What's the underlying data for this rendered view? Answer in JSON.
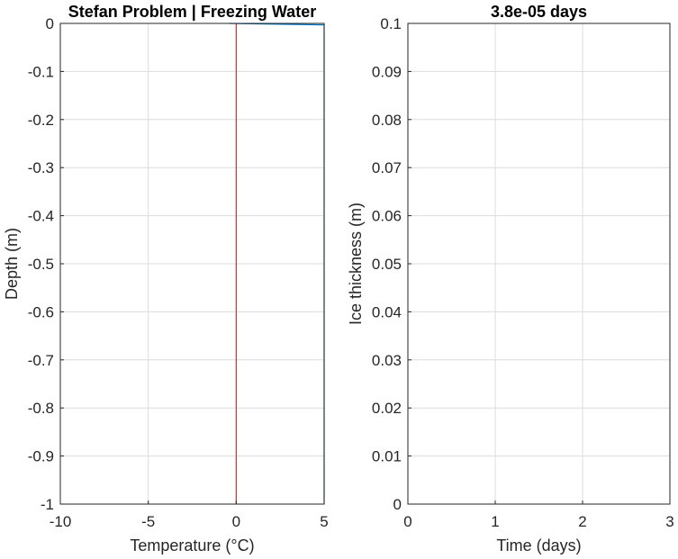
{
  "colors": {
    "grid": "#dcdcdc",
    "axes": "#262626",
    "temperature_line": "#0072bd",
    "freezing_line": "#c0392b"
  },
  "chart_data": [
    {
      "type": "line",
      "title": "Stefan Problem | Freezing Water",
      "xlabel": "Temperature (°C)",
      "ylabel": "Depth (m)",
      "xlim": [
        -10,
        5
      ],
      "ylim": [
        -1,
        0
      ],
      "xticks": [
        -10,
        -5,
        0,
        5
      ],
      "yticks": [
        -1,
        -0.9,
        -0.8,
        -0.7,
        -0.6,
        -0.5,
        -0.4,
        -0.3,
        -0.2,
        -0.1,
        0
      ],
      "xtick_labels": [
        "-10",
        "-5",
        "0",
        "5"
      ],
      "ytick_labels": [
        "-1",
        "-0.9",
        "-0.8",
        "-0.7",
        "-0.6",
        "-0.5",
        "-0.4",
        "-0.3",
        "-0.2",
        "-0.1",
        "0"
      ],
      "grid": true,
      "series": [
        {
          "x": [
            -0.4,
            5,
            5
          ],
          "y": [
            0,
            -0.003,
            -1
          ],
          "color": "#0072bd"
        },
        {
          "x": [
            0,
            0
          ],
          "y": [
            0,
            -1
          ],
          "color": "#c0392b"
        }
      ]
    },
    {
      "type": "line",
      "title": "3.8e-05 days",
      "xlabel": "Time (days)",
      "ylabel": "Ice thickness (m)",
      "xlim": [
        0,
        3
      ],
      "ylim": [
        0,
        0.1
      ],
      "xticks": [
        0,
        1,
        2,
        3
      ],
      "yticks": [
        0,
        0.01,
        0.02,
        0.03,
        0.04,
        0.05,
        0.06,
        0.07,
        0.08,
        0.09,
        0.1
      ],
      "xtick_labels": [
        "0",
        "1",
        "2",
        "3"
      ],
      "ytick_labels": [
        "0",
        "0.01",
        "0.02",
        "0.03",
        "0.04",
        "0.05",
        "0.06",
        "0.07",
        "0.08",
        "0.09",
        "0.1"
      ],
      "grid": true,
      "series": []
    }
  ]
}
